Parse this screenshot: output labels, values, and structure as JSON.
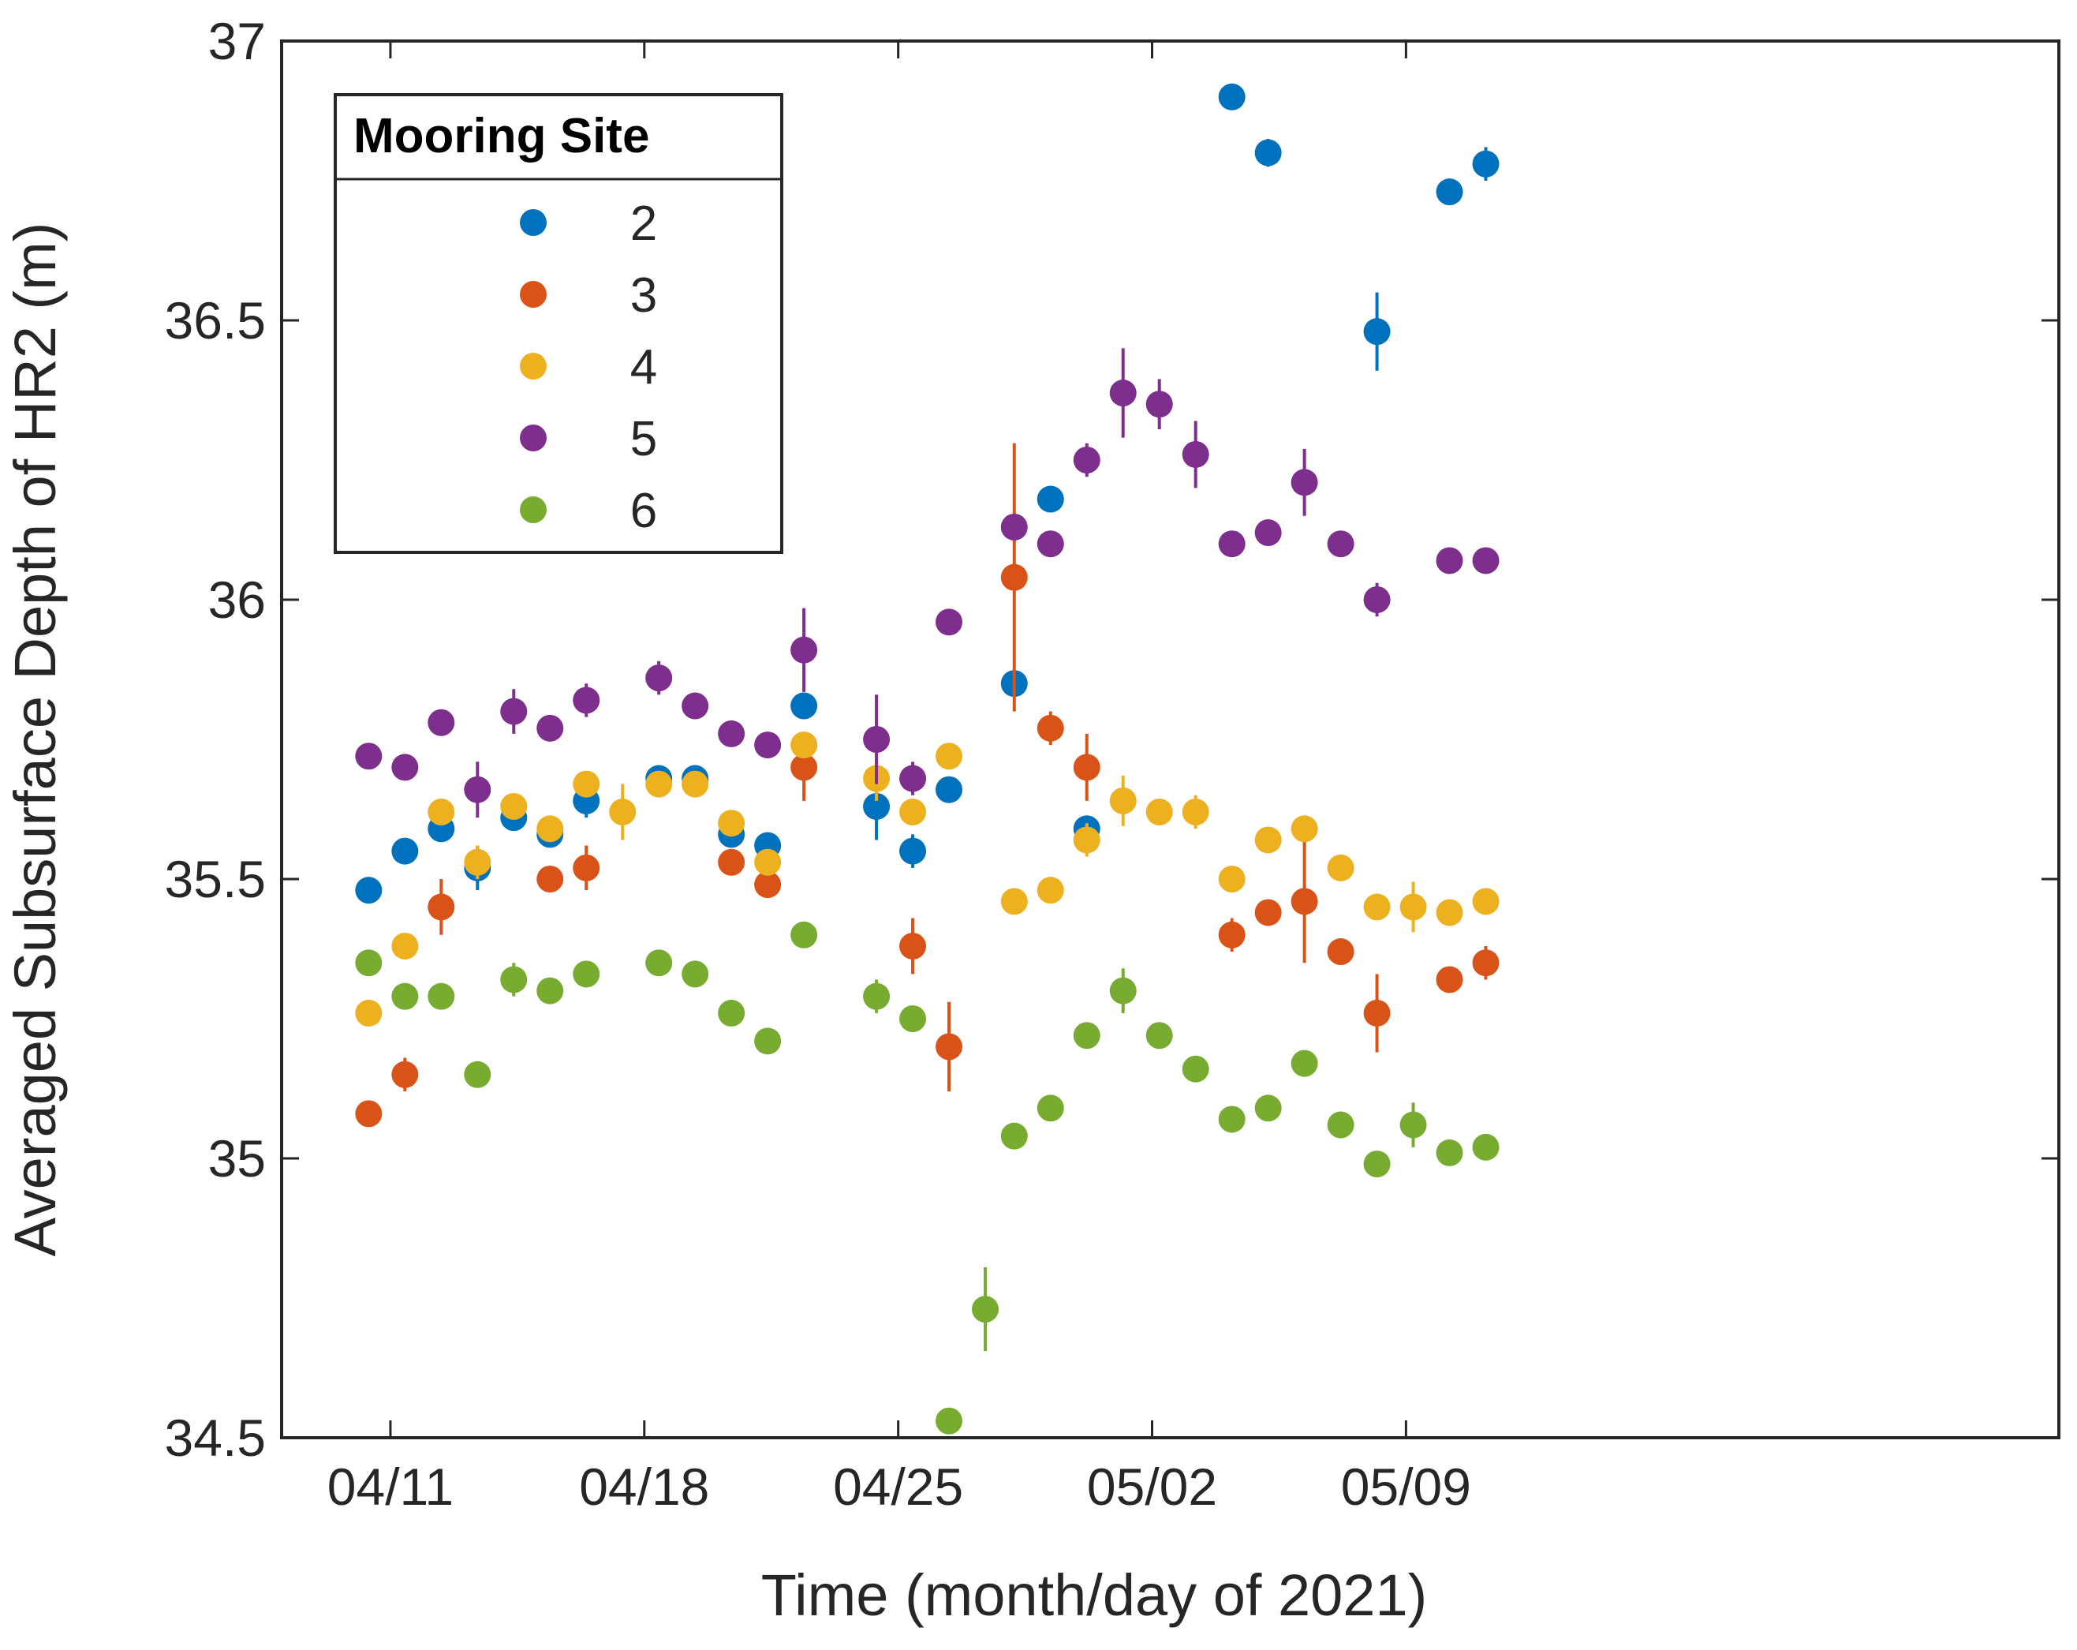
{
  "chart_data": {
    "type": "scatter",
    "title": "",
    "xlabel": "Time (month/day of 2021)",
    "ylabel": "Averaged Subsurface Depth of HR2 (m)",
    "xlim": [
      -3,
      46
    ],
    "ylim": [
      34.5,
      37
    ],
    "x_unit": "days after 04/11/2021",
    "xticks": [
      0,
      7,
      14,
      21,
      28
    ],
    "xtick_labels": [
      "04/11",
      "04/18",
      "04/25",
      "05/02",
      "05/09"
    ],
    "yticks": [
      34.5,
      35,
      35.5,
      36,
      36.5,
      37
    ],
    "ytick_labels": [
      "34.5",
      "35",
      "35.5",
      "36",
      "36.5",
      "37"
    ],
    "legend": {
      "title": "Mooring Site",
      "position": "top-left"
    },
    "series": [
      {
        "name": "2",
        "color": "#0072BD",
        "points": [
          {
            "x": -0.6,
            "y": 35.48,
            "err": 0.01
          },
          {
            "x": 0.4,
            "y": 35.55,
            "err": 0.015
          },
          {
            "x": 1.4,
            "y": 35.59,
            "err": 0.02
          },
          {
            "x": 2.4,
            "y": 35.52,
            "err": 0.04
          },
          {
            "x": 3.4,
            "y": 35.61,
            "err": 0.02
          },
          {
            "x": 4.4,
            "y": 35.58,
            "err": 0.01
          },
          {
            "x": 5.4,
            "y": 35.64,
            "err": 0.03
          },
          {
            "x": 7.4,
            "y": 35.68,
            "err": 0.02
          },
          {
            "x": 8.4,
            "y": 35.68,
            "err": 0.015
          },
          {
            "x": 9.4,
            "y": 35.58,
            "err": 0.015
          },
          {
            "x": 10.4,
            "y": 35.56,
            "err": 0.015
          },
          {
            "x": 11.4,
            "y": 35.81,
            "err": 0.015
          },
          {
            "x": 13.4,
            "y": 35.63,
            "err": 0.06
          },
          {
            "x": 14.4,
            "y": 35.55,
            "err": 0.03
          },
          {
            "x": 15.4,
            "y": 35.66,
            "err": 0.01
          },
          {
            "x": 17.2,
            "y": 35.85,
            "err": 0.01
          },
          {
            "x": 18.2,
            "y": 36.18,
            "err": 0.01
          },
          {
            "x": 19.2,
            "y": 35.59,
            "err": 0.01
          },
          {
            "x": 23.2,
            "y": 36.9,
            "err": 0.01
          },
          {
            "x": 24.2,
            "y": 36.8,
            "err": 0.025
          },
          {
            "x": 27.2,
            "y": 36.48,
            "err": 0.07
          },
          {
            "x": 29.2,
            "y": 36.73,
            "err": 0.015
          },
          {
            "x": 30.2,
            "y": 36.78,
            "err": 0.03
          }
        ]
      },
      {
        "name": "3",
        "color": "#D95319",
        "points": [
          {
            "x": -0.6,
            "y": 35.08,
            "err": 0.01
          },
          {
            "x": 0.4,
            "y": 35.15,
            "err": 0.03
          },
          {
            "x": 1.4,
            "y": 35.45,
            "err": 0.05
          },
          {
            "x": 4.4,
            "y": 35.5,
            "err": 0.01
          },
          {
            "x": 5.4,
            "y": 35.52,
            "err": 0.04
          },
          {
            "x": 9.4,
            "y": 35.53,
            "err": 0.015
          },
          {
            "x": 10.4,
            "y": 35.49,
            "err": 0.015
          },
          {
            "x": 11.4,
            "y": 35.7,
            "err": 0.06
          },
          {
            "x": 14.4,
            "y": 35.38,
            "err": 0.05
          },
          {
            "x": 15.4,
            "y": 35.2,
            "err": 0.08
          },
          {
            "x": 17.2,
            "y": 36.04,
            "err": 0.24
          },
          {
            "x": 18.2,
            "y": 35.77,
            "err": 0.03
          },
          {
            "x": 19.2,
            "y": 35.7,
            "err": 0.06
          },
          {
            "x": 23.2,
            "y": 35.4,
            "err": 0.03
          },
          {
            "x": 24.2,
            "y": 35.44,
            "err": 0.02
          },
          {
            "x": 25.2,
            "y": 35.46,
            "err": 0.11
          },
          {
            "x": 26.2,
            "y": 35.37,
            "err": 0.02
          },
          {
            "x": 27.2,
            "y": 35.26,
            "err": 0.07
          },
          {
            "x": 29.2,
            "y": 35.32,
            "err": 0.01
          },
          {
            "x": 30.2,
            "y": 35.35,
            "err": 0.03
          }
        ]
      },
      {
        "name": "4",
        "color": "#EDB120",
        "points": [
          {
            "x": -0.6,
            "y": 35.26,
            "err": 0.01
          },
          {
            "x": 0.4,
            "y": 35.38,
            "err": 0.01
          },
          {
            "x": 1.4,
            "y": 35.62,
            "err": 0.01
          },
          {
            "x": 2.4,
            "y": 35.53,
            "err": 0.03
          },
          {
            "x": 3.4,
            "y": 35.63,
            "err": 0.02
          },
          {
            "x": 4.4,
            "y": 35.59,
            "err": 0.01
          },
          {
            "x": 5.4,
            "y": 35.67,
            "err": 0.015
          },
          {
            "x": 6.4,
            "y": 35.62,
            "err": 0.05
          },
          {
            "x": 7.4,
            "y": 35.67,
            "err": 0.015
          },
          {
            "x": 8.4,
            "y": 35.67,
            "err": 0.015
          },
          {
            "x": 9.4,
            "y": 35.6,
            "err": 0.01
          },
          {
            "x": 10.4,
            "y": 35.53,
            "err": 0.02
          },
          {
            "x": 11.4,
            "y": 35.74,
            "err": 0.015
          },
          {
            "x": 13.4,
            "y": 35.68,
            "err": 0.04
          },
          {
            "x": 14.4,
            "y": 35.62,
            "err": 0.01
          },
          {
            "x": 15.4,
            "y": 35.72,
            "err": 0.01
          },
          {
            "x": 17.2,
            "y": 35.46,
            "err": 0.01
          },
          {
            "x": 18.2,
            "y": 35.48,
            "err": 0.01
          },
          {
            "x": 19.2,
            "y": 35.57,
            "err": 0.03
          },
          {
            "x": 20.2,
            "y": 35.64,
            "err": 0.045
          },
          {
            "x": 21.2,
            "y": 35.62,
            "err": 0.015
          },
          {
            "x": 22.2,
            "y": 35.62,
            "err": 0.03
          },
          {
            "x": 23.2,
            "y": 35.5,
            "err": 0.01
          },
          {
            "x": 24.2,
            "y": 35.57,
            "err": 0.01
          },
          {
            "x": 25.2,
            "y": 35.59,
            "err": 0.01
          },
          {
            "x": 26.2,
            "y": 35.52,
            "err": 0.01
          },
          {
            "x": 27.2,
            "y": 35.45,
            "err": 0.01
          },
          {
            "x": 28.2,
            "y": 35.45,
            "err": 0.045
          },
          {
            "x": 29.2,
            "y": 35.44,
            "err": 0.01
          },
          {
            "x": 30.2,
            "y": 35.46,
            "err": 0.01
          }
        ]
      },
      {
        "name": "5",
        "color": "#7E2F8E",
        "points": [
          {
            "x": -0.6,
            "y": 35.72,
            "err": 0.01
          },
          {
            "x": 0.4,
            "y": 35.7,
            "err": 0.01
          },
          {
            "x": 1.4,
            "y": 35.78,
            "err": 0.02
          },
          {
            "x": 2.4,
            "y": 35.66,
            "err": 0.05
          },
          {
            "x": 3.4,
            "y": 35.8,
            "err": 0.04
          },
          {
            "x": 4.4,
            "y": 35.77,
            "err": 0.01
          },
          {
            "x": 5.4,
            "y": 35.82,
            "err": 0.03
          },
          {
            "x": 7.4,
            "y": 35.86,
            "err": 0.03
          },
          {
            "x": 8.4,
            "y": 35.81,
            "err": 0.01
          },
          {
            "x": 9.4,
            "y": 35.76,
            "err": 0.01
          },
          {
            "x": 10.4,
            "y": 35.74,
            "err": 0.01
          },
          {
            "x": 11.4,
            "y": 35.91,
            "err": 0.075
          },
          {
            "x": 13.4,
            "y": 35.75,
            "err": 0.08
          },
          {
            "x": 14.4,
            "y": 35.68,
            "err": 0.03
          },
          {
            "x": 15.4,
            "y": 35.96,
            "err": 0.01
          },
          {
            "x": 17.2,
            "y": 36.13,
            "err": 0.01
          },
          {
            "x": 18.2,
            "y": 36.1,
            "err": 0.01
          },
          {
            "x": 19.2,
            "y": 36.25,
            "err": 0.03
          },
          {
            "x": 20.2,
            "y": 36.37,
            "err": 0.08
          },
          {
            "x": 21.2,
            "y": 36.35,
            "err": 0.045
          },
          {
            "x": 22.2,
            "y": 36.26,
            "err": 0.06
          },
          {
            "x": 23.2,
            "y": 36.1,
            "err": 0.01
          },
          {
            "x": 24.2,
            "y": 36.12,
            "err": 0.01
          },
          {
            "x": 25.2,
            "y": 36.21,
            "err": 0.06
          },
          {
            "x": 26.2,
            "y": 36.1,
            "err": 0.01
          },
          {
            "x": 27.2,
            "y": 36.0,
            "err": 0.03
          },
          {
            "x": 29.2,
            "y": 36.07,
            "err": 0.01
          },
          {
            "x": 30.2,
            "y": 36.07,
            "err": 0.01
          }
        ]
      },
      {
        "name": "6",
        "color": "#77AC30",
        "points": [
          {
            "x": -0.6,
            "y": 35.35,
            "err": 0.01
          },
          {
            "x": 0.4,
            "y": 35.29,
            "err": 0.01
          },
          {
            "x": 1.4,
            "y": 35.29,
            "err": 0.01
          },
          {
            "x": 2.4,
            "y": 35.15,
            "err": 0.01
          },
          {
            "x": 3.4,
            "y": 35.32,
            "err": 0.03
          },
          {
            "x": 4.4,
            "y": 35.3,
            "err": 0.01
          },
          {
            "x": 5.4,
            "y": 35.33,
            "err": 0.01
          },
          {
            "x": 7.4,
            "y": 35.35,
            "err": 0.01
          },
          {
            "x": 8.4,
            "y": 35.33,
            "err": 0.01
          },
          {
            "x": 9.4,
            "y": 35.26,
            "err": 0.01
          },
          {
            "x": 10.4,
            "y": 35.21,
            "err": 0.01
          },
          {
            "x": 11.4,
            "y": 35.4,
            "err": 0.01
          },
          {
            "x": 13.4,
            "y": 35.29,
            "err": 0.03
          },
          {
            "x": 14.4,
            "y": 35.25,
            "err": 0.01
          },
          {
            "x": 15.4,
            "y": 34.53,
            "err": 0.01
          },
          {
            "x": 16.4,
            "y": 34.73,
            "err": 0.075
          },
          {
            "x": 17.2,
            "y": 35.04,
            "err": 0.01
          },
          {
            "x": 18.2,
            "y": 35.09,
            "err": 0.01
          },
          {
            "x": 19.2,
            "y": 35.22,
            "err": 0.01
          },
          {
            "x": 20.2,
            "y": 35.3,
            "err": 0.04
          },
          {
            "x": 21.2,
            "y": 35.22,
            "err": 0.02
          },
          {
            "x": 22.2,
            "y": 35.16,
            "err": 0.02
          },
          {
            "x": 23.2,
            "y": 35.07,
            "err": 0.01
          },
          {
            "x": 24.2,
            "y": 35.09,
            "err": 0.01
          },
          {
            "x": 25.2,
            "y": 35.17,
            "err": 0.01
          },
          {
            "x": 26.2,
            "y": 35.06,
            "err": 0.01
          },
          {
            "x": 27.2,
            "y": 34.99,
            "err": 0.01
          },
          {
            "x": 28.2,
            "y": 35.06,
            "err": 0.04
          },
          {
            "x": 29.2,
            "y": 35.01,
            "err": 0.01
          },
          {
            "x": 30.2,
            "y": 35.02,
            "err": 0.01
          }
        ]
      }
    ]
  }
}
